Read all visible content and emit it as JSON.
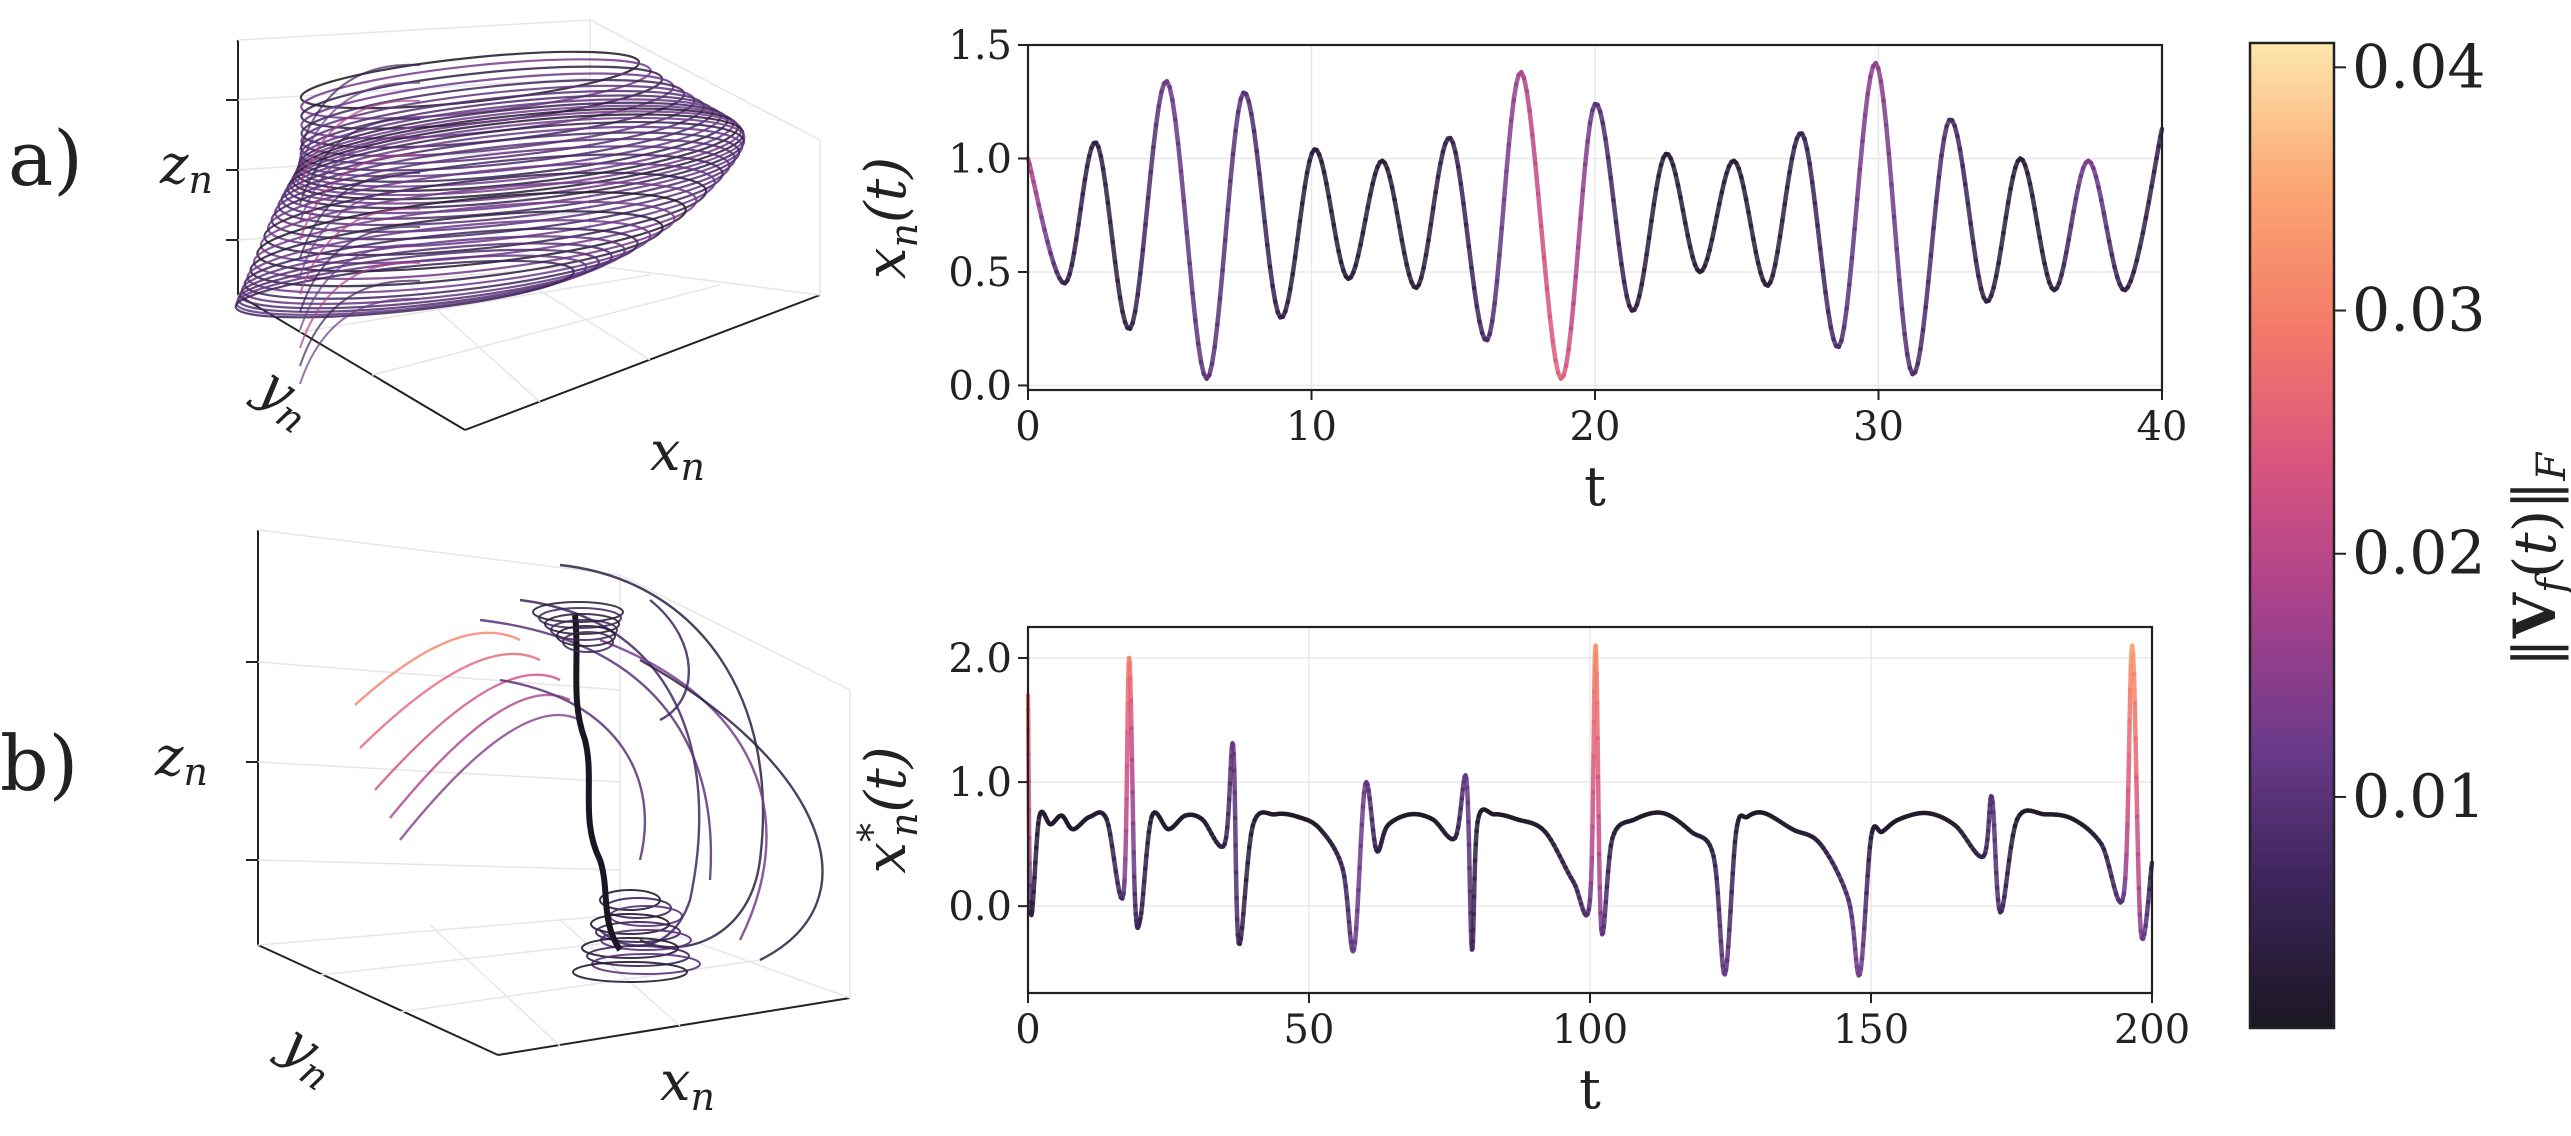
{
  "panels": {
    "a": {
      "label": "a)",
      "axis3d": {
        "x": "x",
        "y": "y",
        "z": "z",
        "sub": "n"
      }
    },
    "b": {
      "label": "b)",
      "axis3d": {
        "x": "x",
        "y": "y",
        "z": "z",
        "sub": "n"
      }
    }
  },
  "colorbar": {
    "label": "‖V_f(t)‖_F",
    "ticks": [
      "0.04",
      "0.03",
      "0.02",
      "0.01"
    ],
    "tick_values": [
      0.04,
      0.03,
      0.02,
      0.01
    ],
    "range": [
      0.0005,
      0.041
    ],
    "colors": [
      "#1b1722",
      "#3b2459",
      "#6b3a8a",
      "#a8418c",
      "#d8547f",
      "#f47b68",
      "#fba773",
      "#fde6ae"
    ]
  },
  "chart_data": [
    {
      "type": "line",
      "panel": "a",
      "xlabel": "t",
      "ylabel": "x_n(t)",
      "xlim": [
        0,
        40
      ],
      "ylim": [
        -0.02,
        1.5
      ],
      "xticks": [
        "0",
        "10",
        "20",
        "30",
        "40"
      ],
      "xtick_values": [
        0,
        10,
        20,
        30,
        40
      ],
      "yticks": [
        "0.0",
        "0.5",
        "1.0",
        "1.5"
      ],
      "ytick_values": [
        0,
        0.5,
        1.0,
        1.5
      ],
      "grid": true,
      "series": [
        {
          "x": [
            0,
            1.3,
            2.4,
            3.6,
            4.9,
            6.3,
            7.6,
            8.9,
            10.1,
            11.3,
            12.5,
            13.7,
            14.9,
            16.2,
            17.4,
            18.8,
            20.0,
            21.3,
            22.5,
            23.7,
            24.9,
            26.1,
            27.3,
            28.6,
            29.9,
            31.2,
            32.5,
            33.8,
            35.0,
            36.2,
            37.4,
            38.7,
            40.0
          ],
          "y": [
            1.0,
            0.45,
            1.07,
            0.25,
            1.34,
            0.03,
            1.29,
            0.3,
            1.04,
            0.47,
            0.99,
            0.43,
            1.09,
            0.2,
            1.38,
            0.03,
            1.24,
            0.33,
            1.02,
            0.5,
            0.99,
            0.44,
            1.11,
            0.17,
            1.42,
            0.05,
            1.17,
            0.37,
            1.0,
            0.42,
            0.99,
            0.42,
            1.13
          ],
          "err": [
            0.02,
            0.005,
            0.004,
            0.004,
            0.012,
            0.01,
            0.01,
            0.004,
            0.003,
            0.003,
            0.003,
            0.003,
            0.005,
            0.007,
            0.018,
            0.026,
            0.01,
            0.004,
            0.003,
            0.003,
            0.003,
            0.003,
            0.005,
            0.008,
            0.016,
            0.008,
            0.008,
            0.004,
            0.003,
            0.003,
            0.014,
            0.004,
            0.005
          ]
        }
      ]
    },
    {
      "type": "line",
      "panel": "b",
      "xlabel": "t",
      "ylabel": "x*_n(t)",
      "xlim": [
        0,
        200
      ],
      "ylim": [
        -0.7,
        2.25
      ],
      "xticks": [
        "0",
        "50",
        "100",
        "150",
        "200"
      ],
      "xtick_values": [
        0,
        50,
        100,
        150,
        200
      ],
      "yticks": [
        "0.0",
        "1.0",
        "2.0"
      ],
      "ytick_values": [
        0,
        1.0,
        2.0
      ],
      "grid": true,
      "series": [
        {
          "x": [
            0,
            0.5,
            2,
            4,
            6,
            8,
            11,
            14,
            17,
            18,
            19,
            20,
            22,
            25,
            28,
            31,
            35,
            36.5,
            37.5,
            40,
            44,
            48,
            52,
            56,
            58,
            60,
            62,
            64,
            68,
            72,
            76,
            78,
            79,
            80,
            83,
            87,
            92,
            97,
            100,
            101,
            102,
            104,
            108,
            113,
            118,
            122,
            124,
            126,
            128,
            131,
            136,
            141,
            146,
            148,
            150,
            152,
            155,
            160,
            165,
            170,
            171.5,
            173,
            176,
            181,
            186,
            191,
            195,
            196.5,
            198,
            200
          ],
          "y": [
            1.7,
            -0.05,
            0.72,
            0.66,
            0.73,
            0.62,
            0.72,
            0.7,
            0.1,
            2.0,
            0.1,
            -0.1,
            0.72,
            0.62,
            0.73,
            0.7,
            0.5,
            1.3,
            -0.3,
            0.65,
            0.74,
            0.72,
            0.62,
            0.3,
            -0.35,
            0.98,
            0.45,
            0.65,
            0.74,
            0.7,
            0.55,
            1.03,
            -0.35,
            0.68,
            0.74,
            0.7,
            0.6,
            0.2,
            0.05,
            2.1,
            -0.18,
            0.55,
            0.7,
            0.75,
            0.6,
            0.4,
            -0.55,
            0.6,
            0.72,
            0.75,
            0.62,
            0.5,
            0.05,
            -0.55,
            0.55,
            0.6,
            0.7,
            0.75,
            0.65,
            0.4,
            0.88,
            -0.05,
            0.7,
            0.74,
            0.7,
            0.5,
            0.1,
            2.1,
            -0.2,
            0.35
          ],
          "err": [
            0.03,
            0.004,
            0.002,
            0.002,
            0.002,
            0.002,
            0.002,
            0.003,
            0.008,
            0.032,
            0.008,
            0.006,
            0.002,
            0.002,
            0.002,
            0.002,
            0.004,
            0.012,
            0.006,
            0.002,
            0.001,
            0.001,
            0.002,
            0.005,
            0.012,
            0.012,
            0.005,
            0.002,
            0.001,
            0.001,
            0.003,
            0.012,
            0.008,
            0.002,
            0.001,
            0.001,
            0.002,
            0.005,
            0.01,
            0.034,
            0.012,
            0.003,
            0.001,
            0.001,
            0.002,
            0.004,
            0.012,
            0.003,
            0.001,
            0.001,
            0.002,
            0.003,
            0.008,
            0.014,
            0.003,
            0.002,
            0.001,
            0.001,
            0.002,
            0.005,
            0.01,
            0.008,
            0.001,
            0.001,
            0.001,
            0.003,
            0.01,
            0.036,
            0.014,
            0.005
          ]
        }
      ]
    }
  ]
}
